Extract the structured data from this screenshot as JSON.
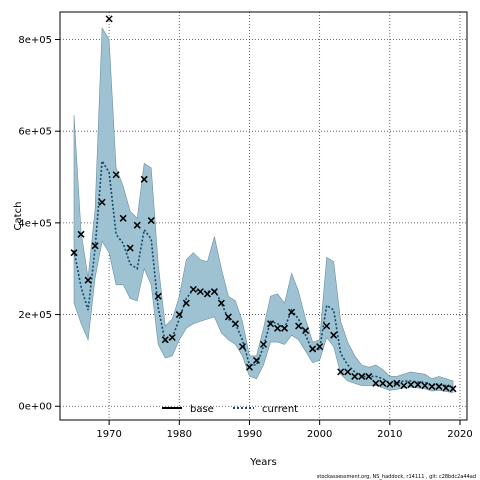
{
  "chart_data": {
    "type": "line",
    "xlabel": "Years",
    "ylabel": "Catch",
    "xlim": [
      1963,
      2021
    ],
    "ylim": [
      -30000,
      860000
    ],
    "x_ticks": [
      1970,
      1980,
      1990,
      2000,
      2010,
      2020
    ],
    "x_tick_labels": [
      "1970",
      "1980",
      "1990",
      "2000",
      "2010",
      "2020"
    ],
    "y_ticks": [
      0,
      200000,
      400000,
      600000,
      800000
    ],
    "y_tick_labels": [
      "0e+00",
      "2e+05",
      "4e+05",
      "6e+05",
      "8e+05"
    ],
    "grid": "dotted",
    "legend_position": "bottom",
    "legend": [
      {
        "label": "base",
        "color": "#000000",
        "style": "solid"
      },
      {
        "label": "current",
        "color": "#0a4a6b",
        "style": "dotted"
      }
    ],
    "colors": {
      "band": "#9fc2d3",
      "band_edge": "#6a8fa0",
      "line": "#0a4a6b",
      "observed": "#000000",
      "grid": "#444444"
    },
    "footnote": "stockassessment.org, NS_haddock, r14111 , git: c28bdc2a44ad",
    "band": {
      "x": [
        1965,
        1966,
        1967,
        1968,
        1969,
        1970,
        1971,
        1972,
        1973,
        1974,
        1975,
        1976,
        1977,
        1978,
        1979,
        1980,
        1981,
        1982,
        1983,
        1984,
        1985,
        1986,
        1987,
        1988,
        1989,
        1990,
        1991,
        1992,
        1993,
        1994,
        1995,
        1996,
        1997,
        1998,
        1999,
        2000,
        2001,
        2002,
        2003,
        2004,
        2005,
        2006,
        2007,
        2008,
        2009,
        2010,
        2011,
        2012,
        2013,
        2014,
        2015,
        2016,
        2017,
        2018,
        2019
      ],
      "upper": [
        635000,
        380000,
        280000,
        430000,
        825000,
        800000,
        520000,
        480000,
        425000,
        410000,
        530000,
        520000,
        310000,
        175000,
        190000,
        240000,
        320000,
        335000,
        320000,
        315000,
        370000,
        300000,
        240000,
        230000,
        185000,
        110000,
        110000,
        170000,
        240000,
        245000,
        225000,
        290000,
        250000,
        190000,
        140000,
        145000,
        325000,
        315000,
        185000,
        140000,
        110000,
        90000,
        85000,
        90000,
        80000,
        65000,
        65000,
        70000,
        75000,
        72000,
        70000,
        60000,
        65000,
        60000,
        55000
      ],
      "lower": [
        225000,
        180000,
        145000,
        280000,
        360000,
        335000,
        265000,
        265000,
        235000,
        230000,
        300000,
        265000,
        135000,
        105000,
        110000,
        145000,
        170000,
        180000,
        185000,
        190000,
        195000,
        160000,
        145000,
        135000,
        110000,
        65000,
        60000,
        90000,
        140000,
        140000,
        135000,
        155000,
        145000,
        120000,
        95000,
        100000,
        150000,
        130000,
        70000,
        55000,
        50000,
        45000,
        45000,
        45000,
        40000,
        35000,
        37000,
        40000,
        42000,
        40000,
        38000,
        33000,
        35000,
        32000,
        30000
      ]
    },
    "series": [
      {
        "name": "current",
        "x": [
          1965,
          1966,
          1967,
          1968,
          1969,
          1970,
          1971,
          1972,
          1973,
          1974,
          1975,
          1976,
          1977,
          1978,
          1979,
          1980,
          1981,
          1982,
          1983,
          1984,
          1985,
          1986,
          1987,
          1988,
          1989,
          1990,
          1991,
          1992,
          1993,
          1994,
          1995,
          1996,
          1997,
          1998,
          1999,
          2000,
          2001,
          2002,
          2003,
          2004,
          2005,
          2006,
          2007,
          2008,
          2009,
          2010,
          2011,
          2012,
          2013,
          2014,
          2015,
          2016,
          2017,
          2018,
          2019
        ],
        "values": [
          340000,
          260000,
          210000,
          345000,
          535000,
          510000,
          375000,
          355000,
          310000,
          300000,
          385000,
          365000,
          215000,
          140000,
          150000,
          190000,
          235000,
          255000,
          250000,
          250000,
          255000,
          225000,
          190000,
          180000,
          145000,
          90000,
          90000,
          130000,
          185000,
          180000,
          170000,
          210000,
          190000,
          155000,
          120000,
          125000,
          220000,
          210000,
          115000,
          90000,
          75000,
          65000,
          65000,
          65000,
          60000,
          50000,
          50000,
          55000,
          55000,
          53000,
          52000,
          45000,
          48000,
          45000,
          42000
        ]
      }
    ],
    "observed": {
      "x": [
        1965,
        1966,
        1967,
        1968,
        1969,
        1970,
        1971,
        1972,
        1973,
        1974,
        1975,
        1976,
        1977,
        1978,
        1979,
        1980,
        1981,
        1982,
        1983,
        1984,
        1985,
        1986,
        1987,
        1988,
        1989,
        1990,
        1991,
        1992,
        1993,
        1994,
        1995,
        1996,
        1997,
        1998,
        1999,
        2000,
        2001,
        2002,
        2003,
        2004,
        2005,
        2006,
        2007,
        2008,
        2009,
        2010,
        2011,
        2012,
        2013,
        2014,
        2015,
        2016,
        2017,
        2018,
        2019
      ],
      "values": [
        335000,
        375000,
        275000,
        350000,
        445000,
        845000,
        505000,
        410000,
        345000,
        395000,
        495000,
        405000,
        240000,
        145000,
        150000,
        200000,
        225000,
        255000,
        250000,
        245000,
        250000,
        225000,
        195000,
        180000,
        130000,
        85000,
        100000,
        135000,
        180000,
        170000,
        170000,
        205000,
        175000,
        165000,
        125000,
        130000,
        175000,
        155000,
        75000,
        75000,
        65000,
        65000,
        65000,
        50000,
        50000,
        48000,
        50000,
        45000,
        47000,
        47000,
        45000,
        43000,
        43000,
        40000,
        38000
      ]
    }
  }
}
